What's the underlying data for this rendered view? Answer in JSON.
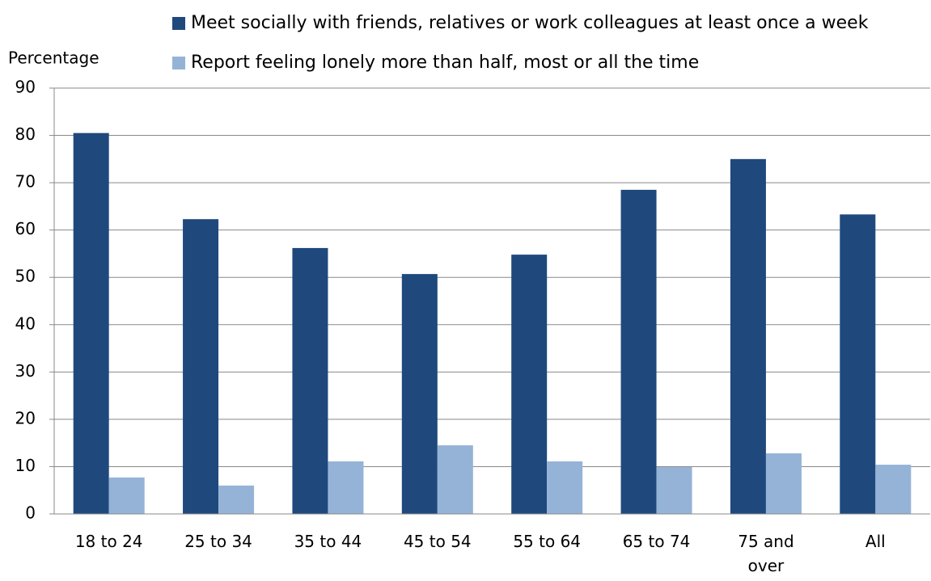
{
  "chart_data": {
    "type": "bar",
    "y_label": "Percentage",
    "categories": [
      "18 to 24",
      "25 to 34",
      "35 to 44",
      "45 to 54",
      "55 to 64",
      "65 to 74",
      "75 and over",
      "All"
    ],
    "series": [
      {
        "name": "Meet socially with friends, relatives or work colleagues at least once a week",
        "color": "#1f497d",
        "values": [
          80.5,
          62.3,
          56.2,
          50.7,
          54.8,
          68.5,
          75.0,
          63.3
        ]
      },
      {
        "name": "Report feeling lonely more than half, most or all  the time",
        "color": "#95b3d7",
        "values": [
          7.7,
          6.0,
          11.1,
          14.5,
          11.1,
          9.9,
          12.8,
          10.4
        ]
      }
    ],
    "ylim": [
      0,
      90
    ],
    "yticks": [
      0,
      10,
      20,
      30,
      40,
      50,
      60,
      70,
      80,
      90
    ],
    "grid": true
  }
}
